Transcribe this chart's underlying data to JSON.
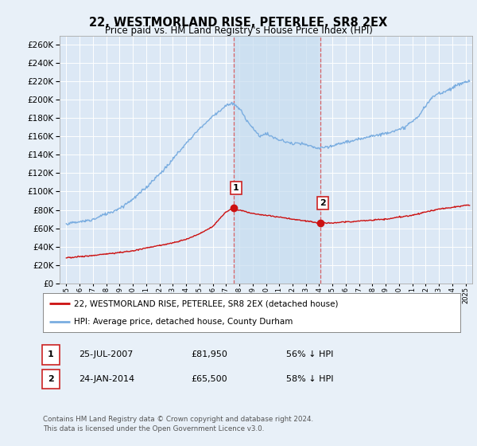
{
  "title": "22, WESTMORLAND RISE, PETERLEE, SR8 2EX",
  "subtitle": "Price paid vs. HM Land Registry's House Price Index (HPI)",
  "ylabel_ticks": [
    0,
    20000,
    40000,
    60000,
    80000,
    100000,
    120000,
    140000,
    160000,
    180000,
    200000,
    220000,
    240000,
    260000
  ],
  "ylim": [
    0,
    270000
  ],
  "xlim_start": 1994.5,
  "xlim_end": 2025.5,
  "bg_color": "#e8f0f8",
  "plot_bg_color": "#dce8f5",
  "grid_color": "#ffffff",
  "hpi_color": "#7aade0",
  "price_color": "#cc1111",
  "marker1_x": 2007.56,
  "marker1_y": 81950,
  "marker2_x": 2014.07,
  "marker2_y": 65500,
  "shade_x1": 2007.56,
  "shade_x2": 2014.07,
  "transaction1_date": "25-JUL-2007",
  "transaction1_price": "£81,950",
  "transaction1_hpi": "56% ↓ HPI",
  "transaction2_date": "24-JAN-2014",
  "transaction2_price": "£65,500",
  "transaction2_hpi": "58% ↓ HPI",
  "legend_line1": "22, WESTMORLAND RISE, PETERLEE, SR8 2EX (detached house)",
  "legend_line2": "HPI: Average price, detached house, County Durham",
  "footer": "Contains HM Land Registry data © Crown copyright and database right 2024.\nThis data is licensed under the Open Government Licence v3.0."
}
